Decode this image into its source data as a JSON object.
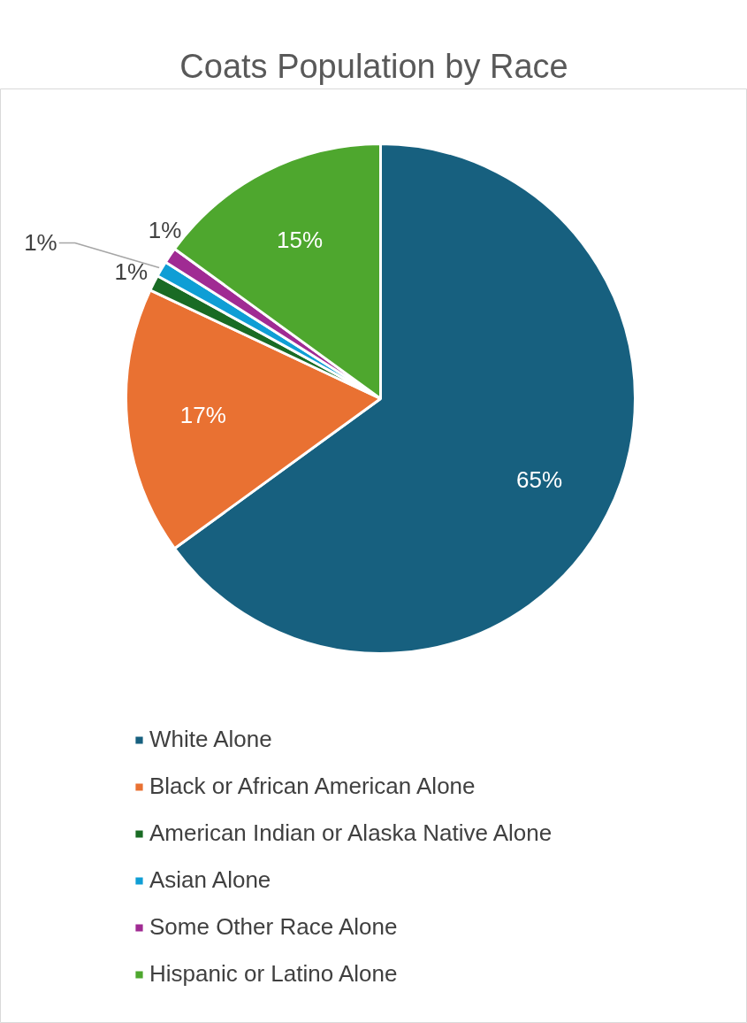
{
  "chart_data": {
    "type": "pie",
    "title": "Coats Population by Race",
    "categories": [
      "White Alone",
      "Black or African American Alone",
      "American Indian or Alaska Native Alone",
      "Asian Alone",
      "Some Other Race Alone",
      "Hispanic or Latino Alone"
    ],
    "values": [
      65,
      17,
      1,
      1,
      1,
      15
    ],
    "colors": [
      "#17607f",
      "#e97132",
      "#196b24",
      "#0f9ed5",
      "#a02b93",
      "#4ea72e"
    ],
    "value_labels": [
      "65%",
      "17%",
      "1%",
      "1%",
      "1%",
      "15%"
    ],
    "legend": "bottom"
  }
}
